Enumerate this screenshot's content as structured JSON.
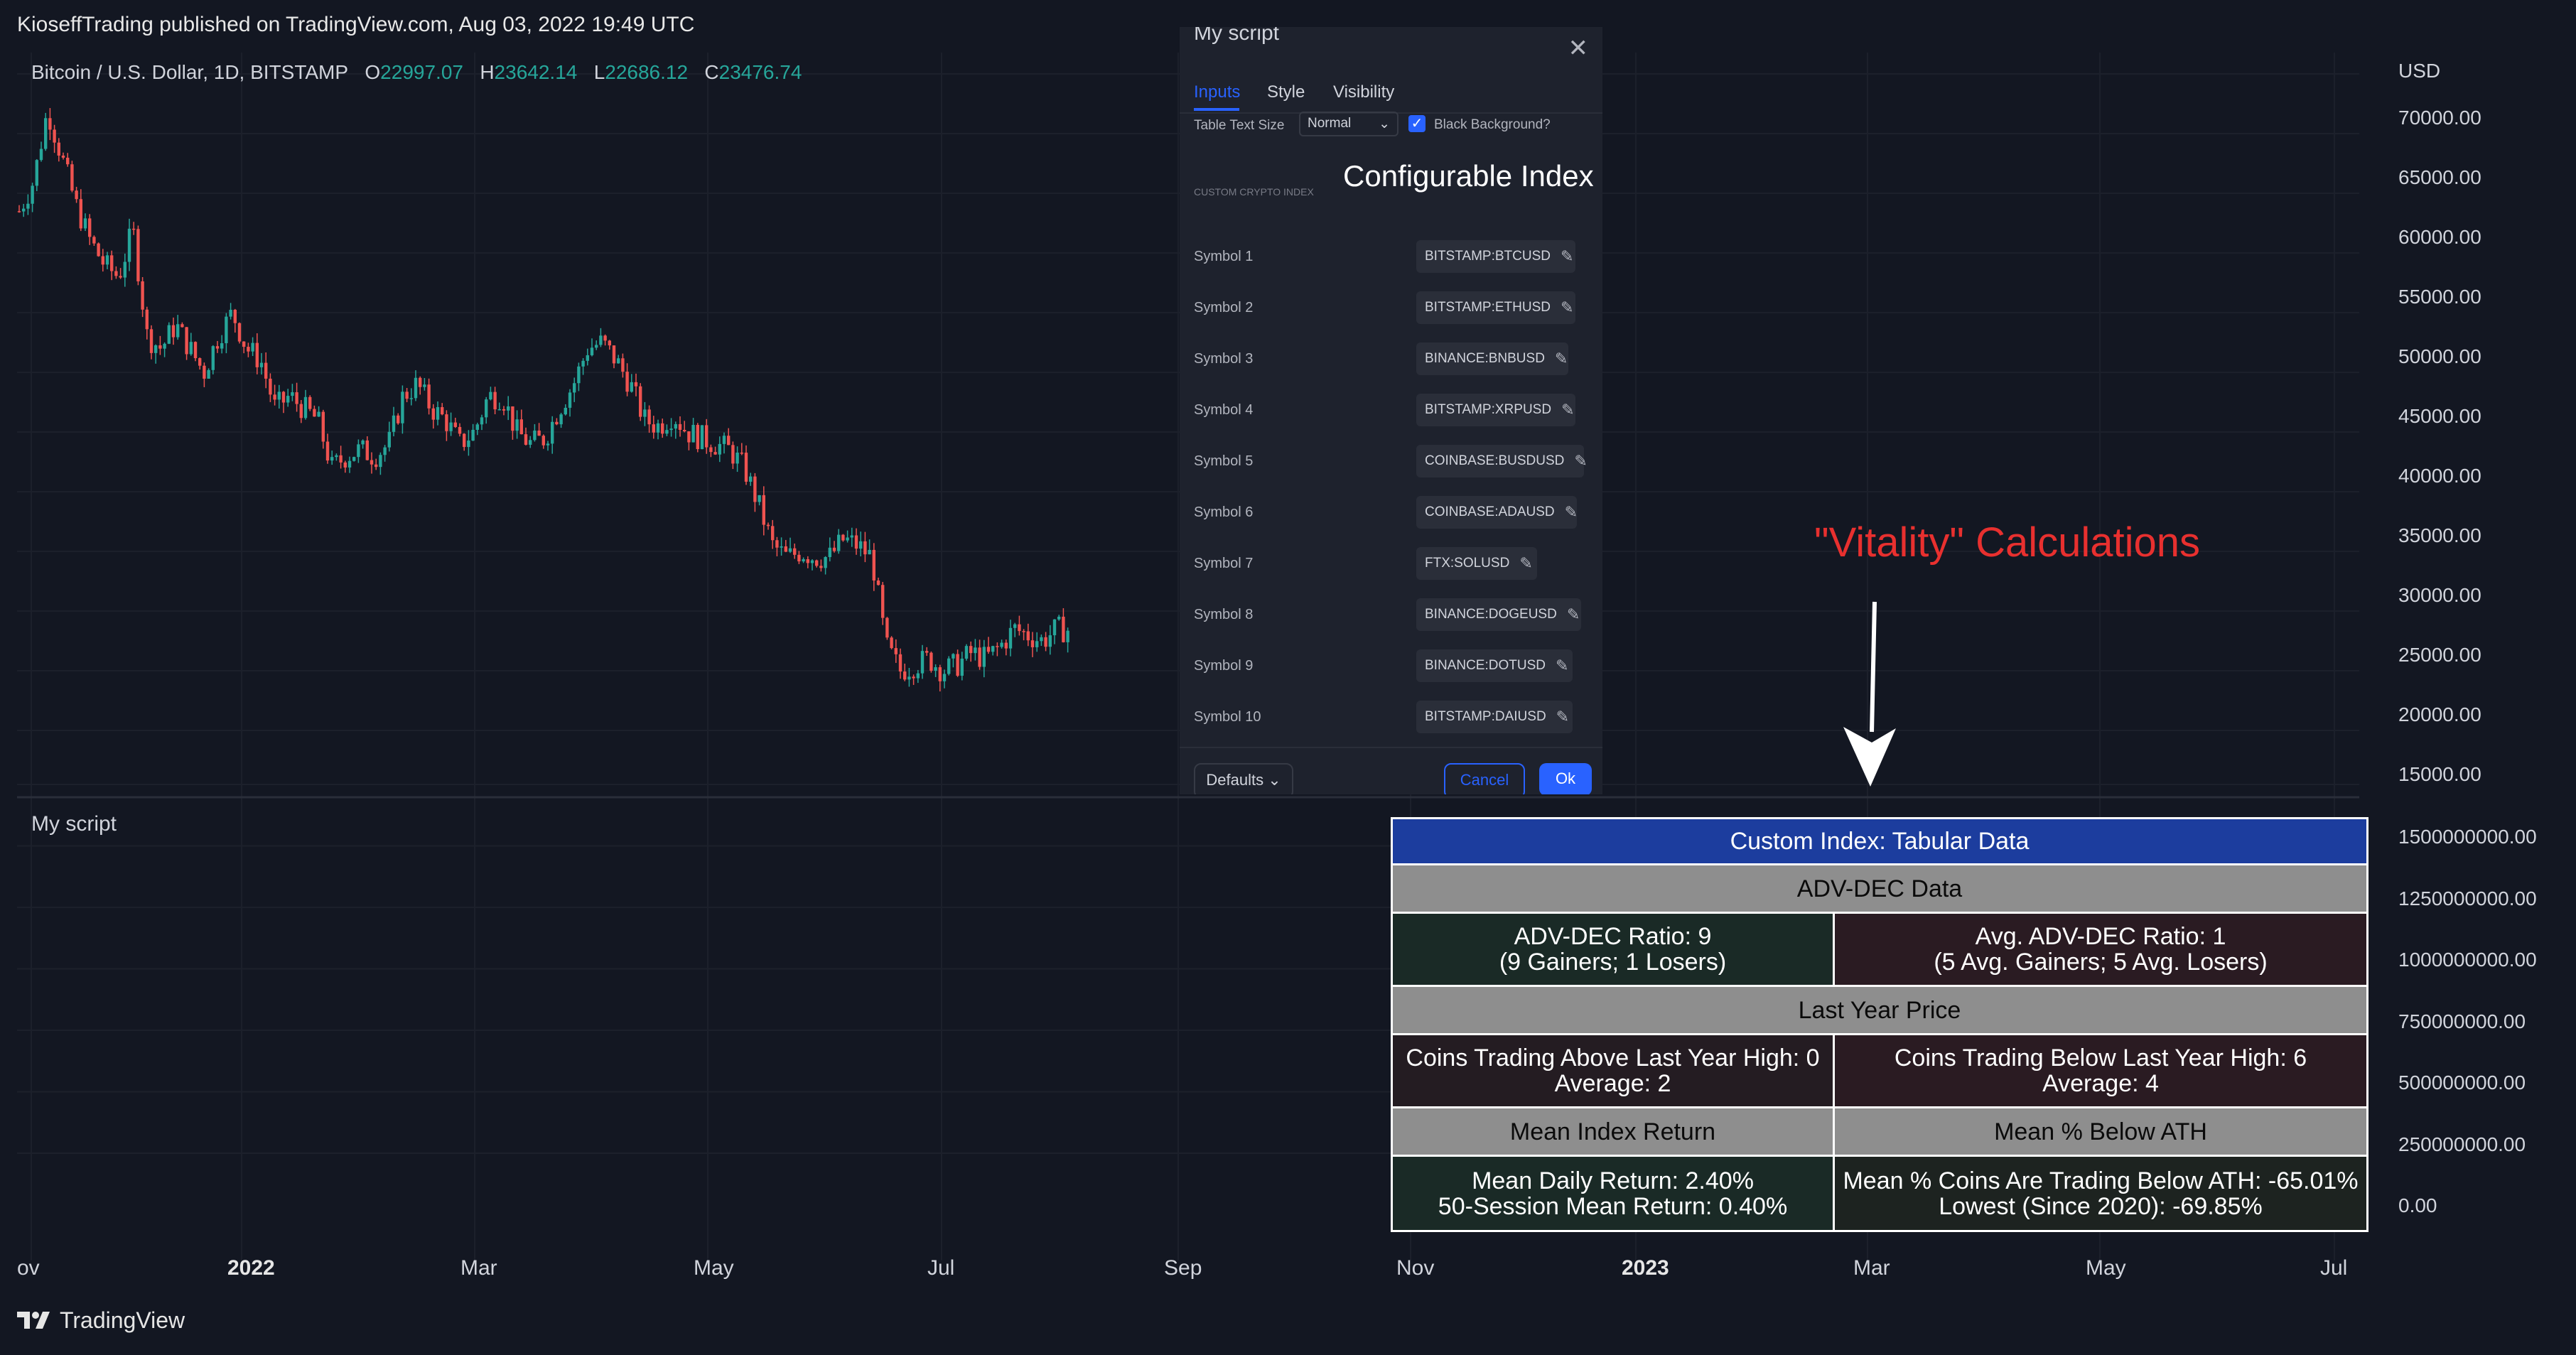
{
  "header": {
    "published": "KioseffTrading published on TradingView.com, Aug 03, 2022 19:49 UTC"
  },
  "legend": {
    "symbol": "Bitcoin / U.S. Dollar, 1D, BITSTAMP",
    "o_label": "O",
    "o_value": "22997.07",
    "h_label": "H",
    "h_value": "23642.14",
    "l_label": "L",
    "l_value": "22686.12",
    "c_label": "C",
    "c_value": "23476.74"
  },
  "price_axis": {
    "currency": "USD",
    "upper_ticks": [
      "70000.00",
      "65000.00",
      "60000.00",
      "55000.00",
      "50000.00",
      "45000.00",
      "40000.00",
      "35000.00",
      "30000.00",
      "25000.00",
      "20000.00",
      "15000.00"
    ],
    "lower_ticks": [
      "1500000000.00",
      "1250000000.00",
      "1000000000.00",
      "750000000.00",
      "500000000.00",
      "250000000.00",
      "0.00"
    ]
  },
  "time_axis": [
    "ov",
    "2022",
    "Mar",
    "May",
    "Jul",
    "Sep",
    "Nov",
    "2023",
    "Mar",
    "May",
    "Jul"
  ],
  "pane2": {
    "label": "My script"
  },
  "dialog": {
    "title": "My script",
    "tabs": [
      "Inputs",
      "Style",
      "Visibility"
    ],
    "table_text_size_label": "Table Text Size",
    "table_text_size_value": "Normal",
    "black_background_label": "Black Background?",
    "section_label": "CUSTOM CRYPTO INDEX",
    "symbols": [
      {
        "label": "Symbol 1",
        "value": "BITSTAMP:BTCUSD"
      },
      {
        "label": "Symbol 2",
        "value": "BITSTAMP:ETHUSD"
      },
      {
        "label": "Symbol 3",
        "value": "BINANCE:BNBUSD"
      },
      {
        "label": "Symbol 4",
        "value": "BITSTAMP:XRPUSD"
      },
      {
        "label": "Symbol 5",
        "value": "COINBASE:BUSDUSD"
      },
      {
        "label": "Symbol 6",
        "value": "COINBASE:ADAUSD"
      },
      {
        "label": "Symbol 7",
        "value": "FTX:SOLUSD"
      },
      {
        "label": "Symbol 8",
        "value": "BINANCE:DOGEUSD"
      },
      {
        "label": "Symbol 9",
        "value": "BINANCE:DOTUSD"
      },
      {
        "label": "Symbol 10",
        "value": "BITSTAMP:DAIUSD"
      }
    ],
    "defaults_label": "Defaults",
    "cancel_label": "Cancel",
    "ok_label": "Ok"
  },
  "annotations": {
    "configurable_index": "Configurable Index",
    "vitality": "\"Vitality\" Calculations"
  },
  "table": {
    "title": "Custom Index: Tabular Data",
    "adv_dec_header": "ADV-DEC Data",
    "adv_dec_ratio_1": "ADV-DEC Ratio: 9",
    "adv_dec_ratio_2": "(9 Gainers; 1 Losers)",
    "avg_adv_dec_1": "Avg. ADV-DEC Ratio: 1",
    "avg_adv_dec_2": "(5 Avg. Gainers; 5 Avg. Losers)",
    "last_year_header": "Last Year Price",
    "above_high_1": "Coins Trading Above Last Year High: 0",
    "above_high_2": "Average: 2",
    "below_high_1": "Coins Trading Below Last Year High: 6",
    "below_high_2": "Average: 4",
    "mean_return_header": "Mean Index Return",
    "mean_below_ath_header": "Mean % Below ATH",
    "daily_return": "Mean Daily Return: 2.40%",
    "session_return": "50-Session Mean Return: 0.40%",
    "coins_below_ath": "Mean % Coins Are Trading Below ATH: -65.01%",
    "lowest": "Lowest (Since 2020): -69.85%"
  },
  "footer": {
    "brand": "TradingView"
  },
  "colors": {
    "up": "#26a69a",
    "down": "#ef5350",
    "accent": "#2962ff",
    "annotation": "#e8302f"
  }
}
